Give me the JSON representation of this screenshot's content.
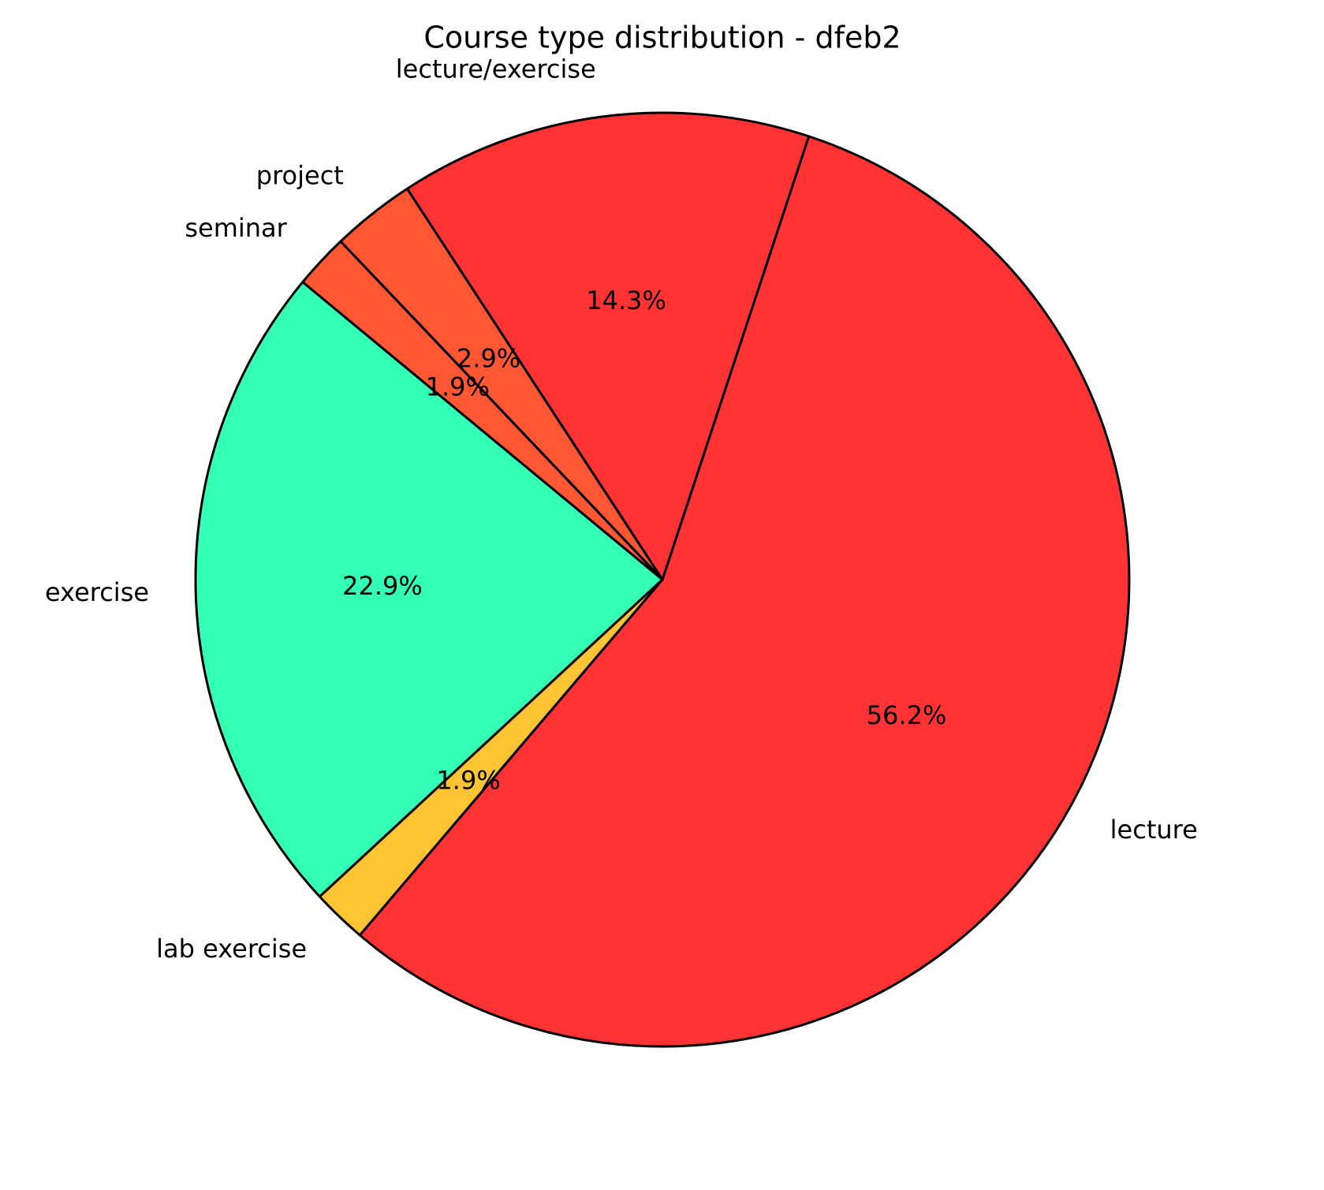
{
  "chart_data": {
    "type": "pie",
    "title": "Course type distribution - dfeb2",
    "categories": [
      "lecture",
      "lecture/exercise",
      "project",
      "seminar",
      "exercise",
      "lab exercise"
    ],
    "values": [
      56.2,
      14.3,
      2.9,
      1.9,
      22.9,
      1.9
    ],
    "value_labels": [
      "56.2%",
      "14.3%",
      "2.9%",
      "1.9%",
      "22.9%",
      "1.9%"
    ],
    "colors": [
      "#ff3333",
      "#ff3333",
      "#ff5733",
      "#ff5733",
      "#33ffb5",
      "#ffc433"
    ]
  }
}
